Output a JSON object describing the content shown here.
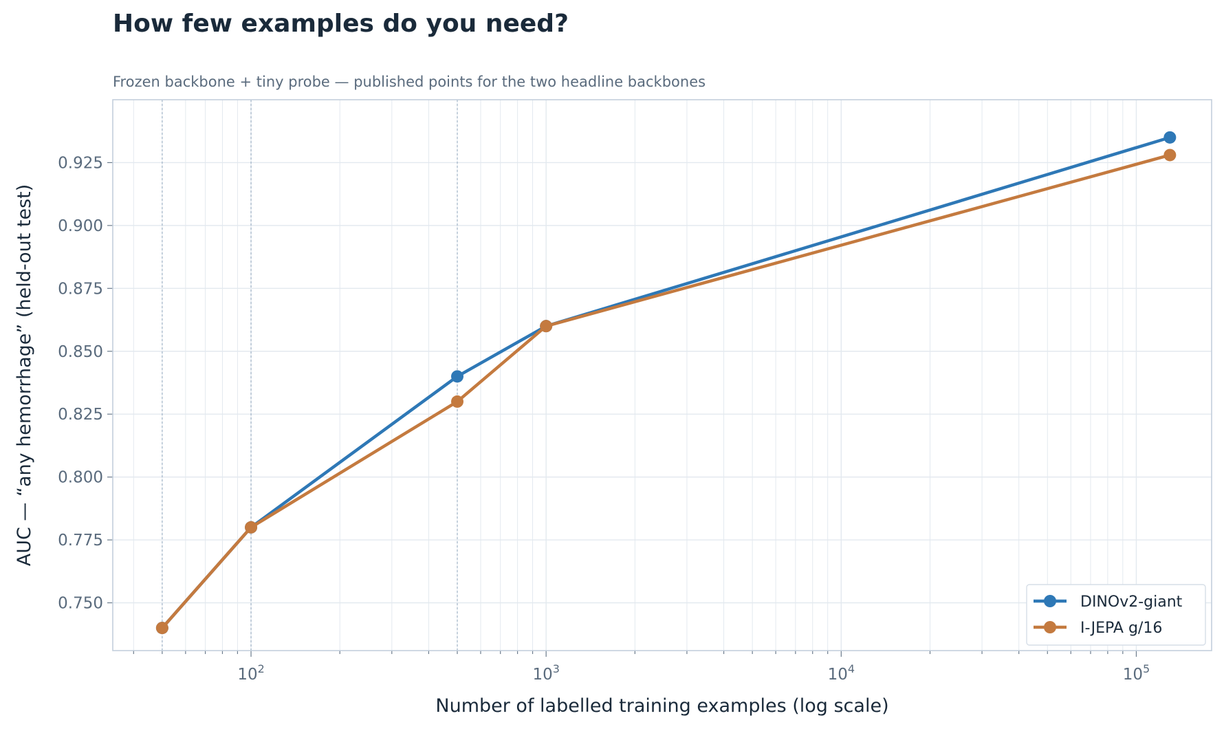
{
  "chart_data": {
    "type": "line",
    "title": "How few examples do you need?",
    "subtitle": "Frozen backbone + tiny probe — published points for the two headline backbones",
    "xlabel": "Number of labelled training examples (log scale)",
    "ylabel": "AUC — “any hemorrhage” (held-out test)",
    "x_scale": "log",
    "xlim": [
      34,
      180000
    ],
    "ylim": [
      0.731,
      0.95
    ],
    "x_ticks": [
      {
        "value": 100,
        "base": "10",
        "exp": "2"
      },
      {
        "value": 1000,
        "base": "10",
        "exp": "3"
      },
      {
        "value": 10000,
        "base": "10",
        "exp": "4"
      },
      {
        "value": 100000,
        "base": "10",
        "exp": "5"
      }
    ],
    "y_ticks": [
      0.75,
      0.775,
      0.8,
      0.825,
      0.85,
      0.875,
      0.9,
      0.925
    ],
    "y_tick_labels": [
      "0.750",
      "0.775",
      "0.800",
      "0.825",
      "0.850",
      "0.875",
      "0.900",
      "0.925"
    ],
    "highlight_x": [
      50,
      100,
      500
    ],
    "grid": true,
    "legend_position": "bottom-right",
    "series": [
      {
        "name": "DINOv2-giant",
        "color": "#2e78b6",
        "x": [
          50,
          100,
          500,
          1000,
          130000
        ],
        "y": [
          0.74,
          0.78,
          0.84,
          0.86,
          0.935
        ]
      },
      {
        "name": "I-JEPA g/16",
        "color": "#c47a3f",
        "x": [
          50,
          100,
          500,
          1000,
          130000
        ],
        "y": [
          0.74,
          0.78,
          0.83,
          0.86,
          0.928
        ]
      }
    ],
    "colors": {
      "text_dark": "#1a2a3a",
      "text_muted": "#5a6b7d",
      "axis": "#c3cfdc",
      "grid": "#e3e9ef"
    }
  }
}
